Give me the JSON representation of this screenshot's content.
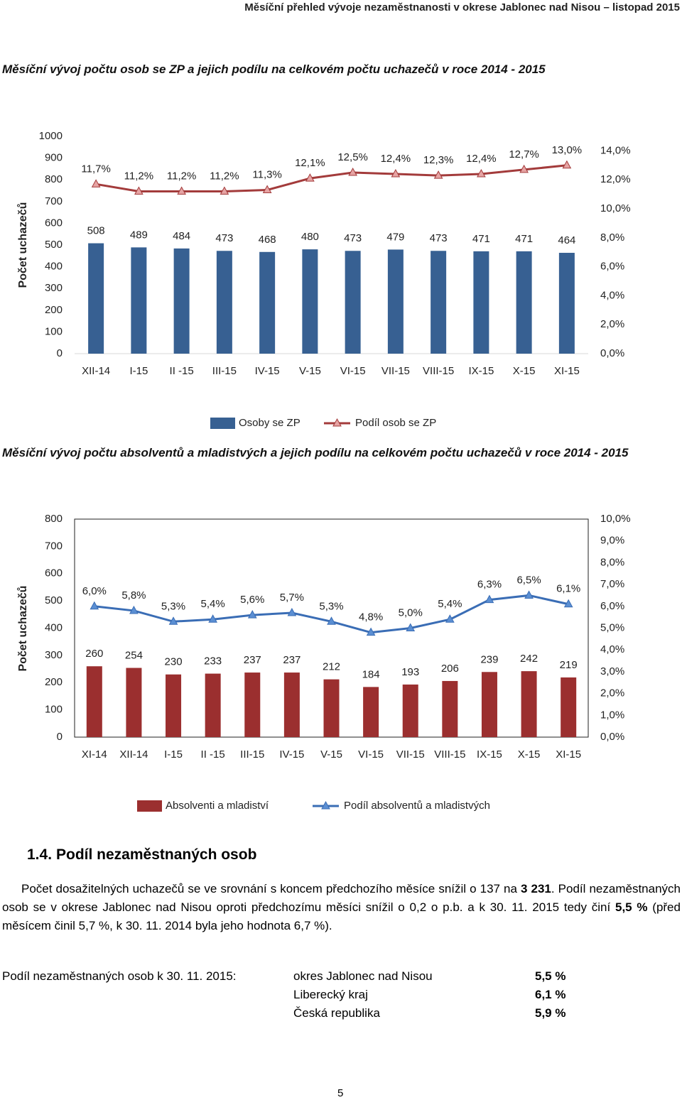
{
  "header": {
    "title": "Měsíční přehled vývoje nezaměstnanosti v okrese Jablonec nad Nisou – listopad 2015"
  },
  "chart_data": [
    {
      "type": "combo",
      "title": "Měsíční vývoj počtu osob se ZP a jejich podílu na celkovém počtu uchazečů v roce 2014 - 2015",
      "y_label": "Počet uchazečů",
      "categories": [
        "XII-14",
        "I-15",
        "II -15",
        "III-15",
        "IV-15",
        "V-15",
        "VI-15",
        "VII-15",
        "VIII-15",
        "IX-15",
        "X-15",
        "XI-15"
      ],
      "series": [
        {
          "name": "Osoby se ZP",
          "type": "bar",
          "color": "#376092",
          "values": [
            508,
            489,
            484,
            473,
            468,
            480,
            473,
            479,
            473,
            471,
            471,
            464
          ]
        },
        {
          "name": "Podíl osob se ZP",
          "type": "line",
          "axis": "y2",
          "color": "#a33b3b",
          "marker_fill": "#e6a4a4",
          "values": [
            11.7,
            11.2,
            11.2,
            11.2,
            11.3,
            12.1,
            12.5,
            12.4,
            12.3,
            12.4,
            12.7,
            13.0
          ],
          "value_labels": [
            "11,7%",
            "11,2%",
            "11,2%",
            "11,2%",
            "11,3%",
            "12,1%",
            "12,5%",
            "12,4%",
            "12,3%",
            "12,4%",
            "12,7%",
            "13,0%"
          ]
        }
      ],
      "ylim": [
        0,
        1000
      ],
      "yticks": [
        0,
        100,
        200,
        300,
        400,
        500,
        600,
        700,
        800,
        900,
        1000
      ],
      "y2lim": [
        0,
        15
      ],
      "y2ticks": [
        {
          "value": 0,
          "label": "0,0%"
        },
        {
          "value": 2,
          "label": "2,0%"
        },
        {
          "value": 4,
          "label": "4,0%"
        },
        {
          "value": 6,
          "label": "6,0%"
        },
        {
          "value": 8,
          "label": "8,0%"
        },
        {
          "value": 10,
          "label": "10,0%"
        },
        {
          "value": 12,
          "label": "12,0%"
        },
        {
          "value": 14,
          "label": "14,0%"
        }
      ],
      "grid": false,
      "legend": "bottom"
    },
    {
      "type": "combo",
      "title": "Měsíční vývoj počtu absolventů a mladistvých a jejich podílu na celkovém počtu uchazečů v roce 2014 - 2015",
      "y_label": "Počet uchazečů",
      "categories": [
        "XI-14",
        "XII-14",
        "I-15",
        "II -15",
        "III-15",
        "IV-15",
        "V-15",
        "VI-15",
        "VII-15",
        "VIII-15",
        "IX-15",
        "X-15",
        "XI-15"
      ],
      "series": [
        {
          "name": "Absolventi a mladiství",
          "type": "bar",
          "color": "#9b2f2f",
          "values": [
            260,
            254,
            230,
            233,
            237,
            237,
            212,
            184,
            193,
            206,
            239,
            242,
            219
          ]
        },
        {
          "name": "Podíl absolventů a mladistvých",
          "type": "line",
          "axis": "y2",
          "color": "#3a6db5",
          "marker_fill": "#5b8fd3",
          "values": [
            6.0,
            5.8,
            5.3,
            5.4,
            5.6,
            5.7,
            5.3,
            4.8,
            5.0,
            5.4,
            6.3,
            6.5,
            6.1
          ],
          "value_labels": [
            "6,0%",
            "5,8%",
            "5,3%",
            "5,4%",
            "5,6%",
            "5,7%",
            "5,3%",
            "4,8%",
            "5,0%",
            "5,4%",
            "6,3%",
            "6,5%",
            "6,1%"
          ]
        }
      ],
      "ylim": [
        0,
        800
      ],
      "yticks": [
        0,
        100,
        200,
        300,
        400,
        500,
        600,
        700,
        800
      ],
      "y2lim": [
        0,
        10
      ],
      "y2ticks": [
        {
          "value": 0,
          "label": "0,0%"
        },
        {
          "value": 1,
          "label": "1,0%"
        },
        {
          "value": 2,
          "label": "2,0%"
        },
        {
          "value": 3,
          "label": "3,0%"
        },
        {
          "value": 4,
          "label": "4,0%"
        },
        {
          "value": 5,
          "label": "5,0%"
        },
        {
          "value": 6,
          "label": "6,0%"
        },
        {
          "value": 7,
          "label": "7,0%"
        },
        {
          "value": 8,
          "label": "8,0%"
        },
        {
          "value": 9,
          "label": "9,0%"
        },
        {
          "value": 10,
          "label": "10,0%"
        }
      ],
      "grid": false,
      "legend": "bottom"
    }
  ],
  "section": {
    "number": "1.4.",
    "title": "Podíl nezaměstnaných osob"
  },
  "paragraph": [
    "Počet dosažitelných uchazečů se ve srovnání s koncem předchozího měsíce snížil o 137 na ",
    "3 231",
    ". Podíl nezaměstnaných osob se v okrese Jablonec nad Nisou oproti předchozímu měsíci snížil o 0,2 o p.b. a k 30. 11. 2015 tedy činí ",
    "5,5 %",
    " (před měsícem činil 5,7 %, k 30. 11. 2014 byla jeho hodnota 6,7 %)."
  ],
  "table": {
    "label": "Podíl nezaměstnaných osob k  30. 11. 2015:",
    "rows": [
      [
        "okres Jablonec nad Nisou",
        "5,5 %"
      ],
      [
        "Liberecký kraj",
        "6,1 %"
      ],
      [
        "Česká republika",
        "5,9 %"
      ]
    ]
  },
  "page_number": "5"
}
